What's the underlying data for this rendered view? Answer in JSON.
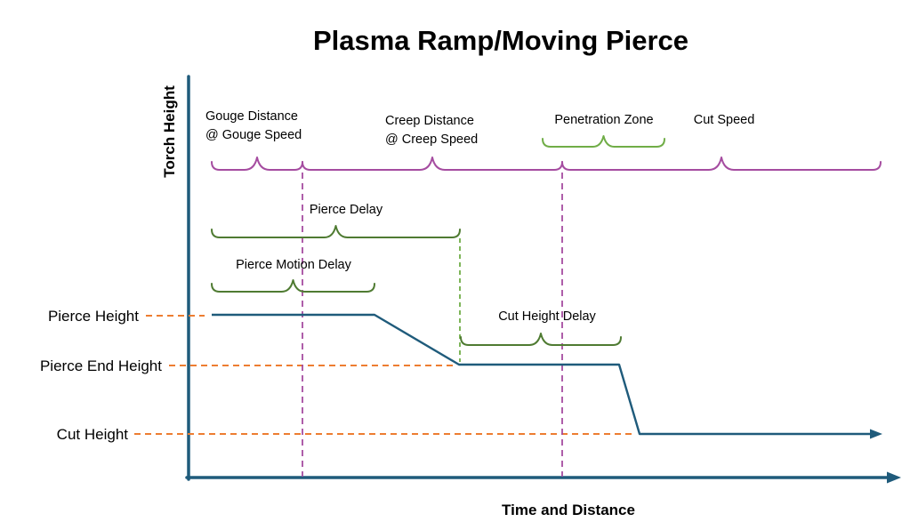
{
  "title": "Plasma Ramp/Moving Pierce",
  "axes": {
    "y_label": "Torch Height",
    "x_label": "Time and Distance"
  },
  "height_levels": {
    "pierce_height": "Pierce Height",
    "pierce_end_height": "Pierce End Height",
    "cut_height": "Cut Height"
  },
  "phase_segments": {
    "gouge_line1": "Gouge Distance",
    "gouge_line2": "@ Gouge Speed",
    "creep_line1": "Creep Distance",
    "creep_line2": "@ Creep Speed",
    "penetration": "Penetration Zone",
    "cut": "Cut Speed"
  },
  "delays": {
    "pierce_delay": "Pierce Delay",
    "pierce_motion_delay": "Pierce Motion Delay",
    "cut_height_delay": "Cut Height Delay"
  },
  "colors": {
    "axis_and_curve": "#1F5B7B",
    "height_reference": "#ED7D31",
    "phase_bracket": "#A54CA0",
    "delay_bracket": "#4F7B32",
    "penetration_bracket": "#70AD47",
    "text": "#000000"
  }
}
